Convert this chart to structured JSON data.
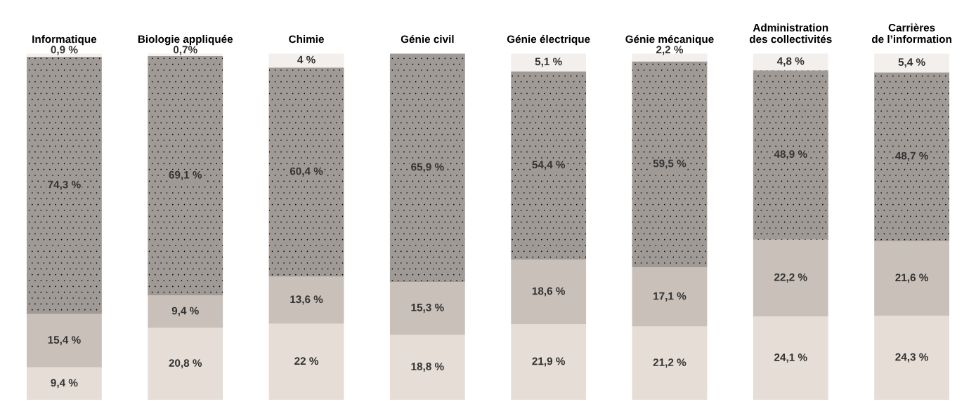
{
  "chart_data": {
    "type": "bar",
    "stacked": true,
    "tick_labels": "x",
    "grid": false,
    "categories": [
      "Informatique",
      "Biologie appliquée",
      "Chimie",
      "Génie civil",
      "Génie électrique",
      "Génie mécanique",
      "Administration\ndes collectivités",
      "Carrières\nde l’information"
    ],
    "series": [
      {
        "color": "#e6ded6",
        "values": [
          9.4,
          20.8,
          22,
          18.8,
          21.9,
          21.2,
          24.1,
          24.3
        ],
        "value_labels": [
          "9,4 %",
          "20,8 %",
          "22 %",
          "18,8 %",
          "21,9 %",
          "21,2 %",
          "24,1 %",
          "24,3 %"
        ]
      },
      {
        "color": "#c9c1b9",
        "values": [
          15.4,
          9.4,
          13.6,
          15.3,
          18.6,
          17.1,
          22.2,
          21.6
        ],
        "value_labels": [
          "15,4 %",
          "9,4 %",
          "13,6 %",
          "15,3 %",
          "18,6 %",
          "17,1 %",
          "22,2 %",
          "21,6 %"
        ]
      },
      {
        "color": "#a09a96",
        "values": [
          74.3,
          69.1,
          60.4,
          65.9,
          54.4,
          59.5,
          48.9,
          48.7
        ],
        "value_labels": [
          "74,3 %",
          "69,1 %",
          "60,4 %",
          "65,9 %",
          "54,4 %",
          "59,5 %",
          "48,9 %",
          "48,7 %"
        ]
      },
      {
        "color": "#f2efec",
        "values": [
          0.9,
          0.7,
          4,
          null,
          5.1,
          2.2,
          4.8,
          5.4
        ],
        "value_labels": [
          "0,9 %",
          "0,7%",
          "4 %",
          null,
          "5,1 %",
          "2,2 %",
          "4,8 %",
          "5,4 %"
        ]
      }
    ]
  }
}
